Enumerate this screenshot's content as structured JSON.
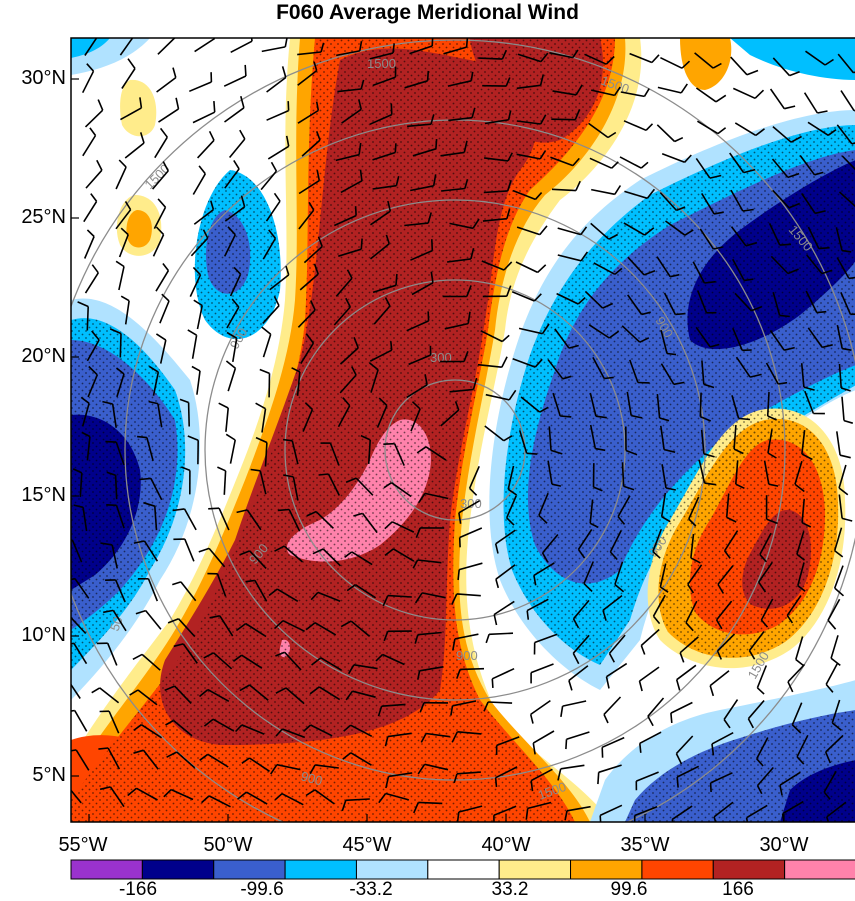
{
  "title": "F060 Average Meridional Wind",
  "lat_labels": [
    "30°N",
    "25°N",
    "20°N",
    "15°N",
    "10°N",
    "5°N"
  ],
  "lon_labels": [
    "55°W",
    "50°W",
    "45°W",
    "40°W",
    "35°W",
    "30°W"
  ],
  "contour_labels": [
    "1500",
    "1500",
    "1500",
    "1500",
    "1500",
    "1500",
    "900",
    "900",
    "900",
    "900",
    "900",
    "900",
    "300",
    "300",
    "50"
  ],
  "colorbar": {
    "colors": [
      "#9a32cd",
      "#00008b",
      "#3a5fcd",
      "#00bfff",
      "#b0e2ff",
      "#ffffff",
      "#ffec8b",
      "#ffa500",
      "#ff4500",
      "#b22222",
      "#ff82ab"
    ],
    "labels": [
      "-166",
      "-99.6",
      "-33.2",
      "33.2",
      "99.6",
      "166"
    ]
  }
}
